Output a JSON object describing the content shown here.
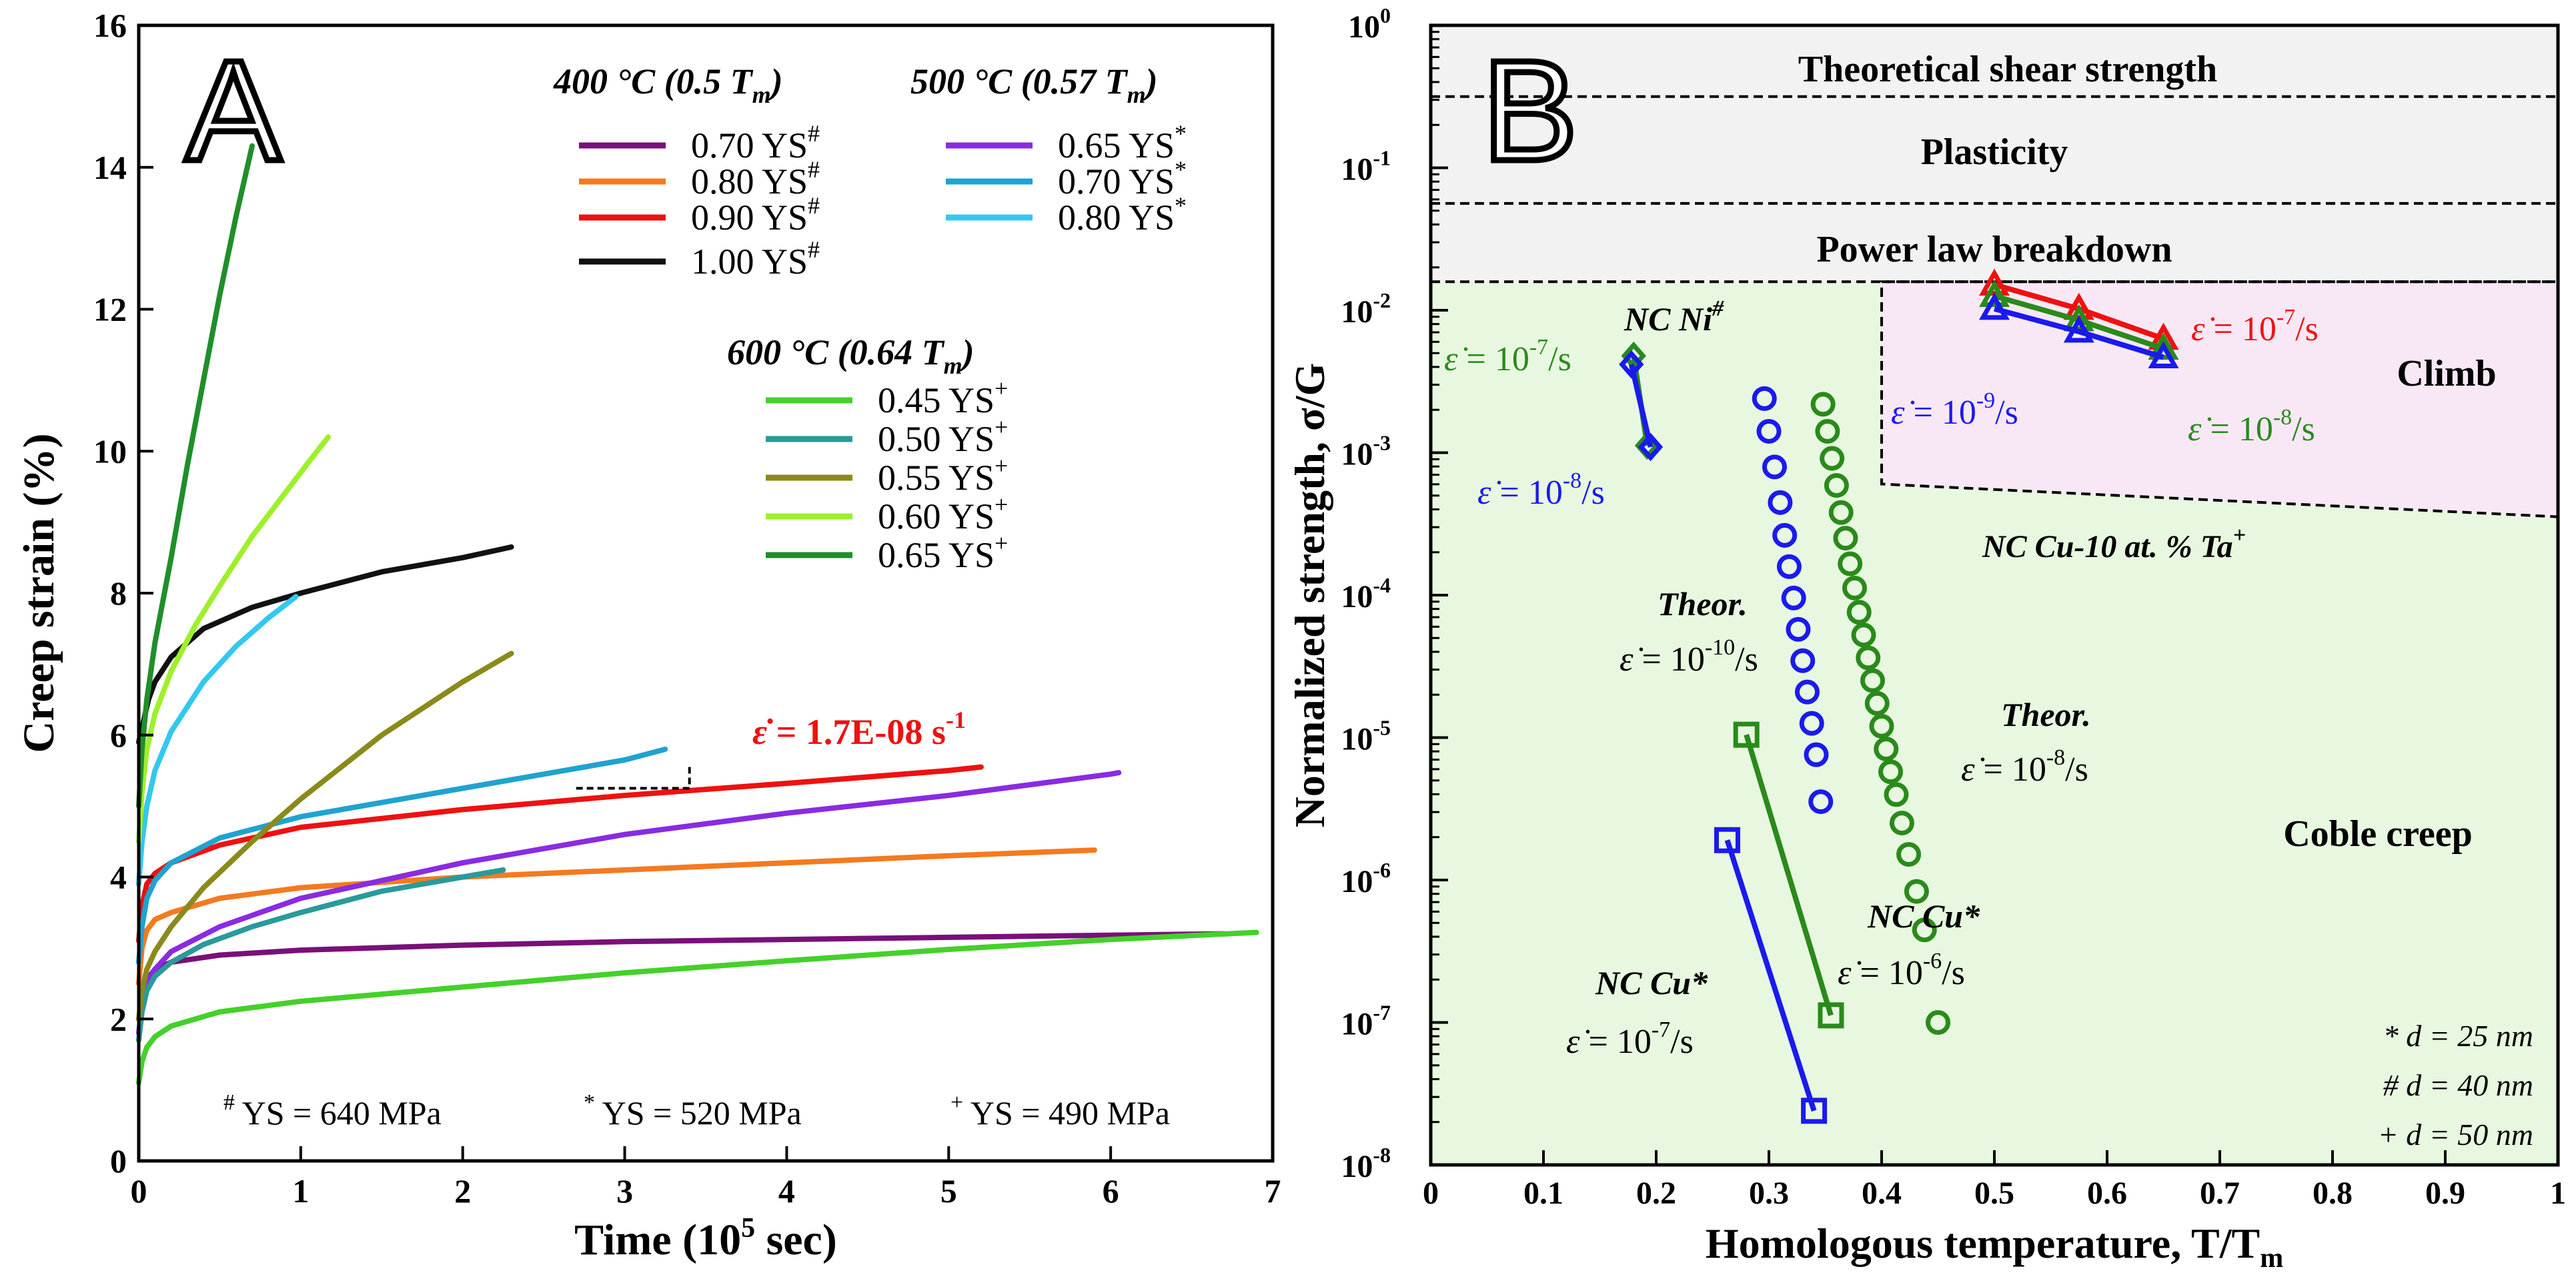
{
  "chart_data": [
    {
      "panel": "A",
      "type": "line",
      "xlabel": "Time (10",
      "xlabel_sup": "5",
      "xlabel_tail": " sec)",
      "ylabel": "Creep strain (%)",
      "xlim": [
        0,
        7
      ],
      "ylim": [
        0,
        16
      ],
      "xticks": [
        "0",
        "1",
        "2",
        "3",
        "4",
        "5",
        "6",
        "7"
      ],
      "yticks": [
        "0",
        "2",
        "4",
        "6",
        "8",
        "10",
        "12",
        "14",
        "16"
      ],
      "legend_groups": [
        {
          "title": "400 °C (0.5 T",
          "sub": "m",
          "title_tail": ")"
        },
        {
          "title": "500 °C (0.57 T",
          "sub": "m",
          "title_tail": ")"
        },
        {
          "title": "600 °C (0.64 T",
          "sub": "m",
          "title_tail": ")"
        }
      ],
      "series": [
        {
          "name": "0.70 YS",
          "mark": "#",
          "group": 0,
          "color": "#7a0f7a",
          "x": [
            0,
            0.02,
            0.05,
            0.1,
            0.2,
            0.5,
            1,
            2,
            3,
            4,
            5,
            6,
            6.7
          ],
          "y": [
            2.0,
            2.3,
            2.55,
            2.7,
            2.8,
            2.9,
            2.97,
            3.04,
            3.09,
            3.12,
            3.15,
            3.18,
            3.2
          ]
        },
        {
          "name": "0.80 YS",
          "mark": "#",
          "group": 0,
          "color": "#f47a20",
          "x": [
            0,
            0.02,
            0.05,
            0.1,
            0.2,
            0.5,
            1,
            2,
            3,
            4,
            5,
            5.9
          ],
          "y": [
            2.5,
            3.0,
            3.25,
            3.4,
            3.5,
            3.7,
            3.85,
            4.0,
            4.1,
            4.2,
            4.3,
            4.38
          ]
        },
        {
          "name": "0.90 YS",
          "mark": "#",
          "group": 0,
          "color": "#ee1111",
          "x": [
            0,
            0.02,
            0.05,
            0.1,
            0.2,
            0.5,
            1,
            2,
            3,
            4,
            5,
            5.2
          ],
          "y": [
            3.1,
            3.6,
            3.9,
            4.05,
            4.2,
            4.45,
            4.7,
            4.95,
            5.15,
            5.32,
            5.5,
            5.55
          ]
        },
        {
          "name": "1.00 YS",
          "mark": "#",
          "group": 0,
          "color": "#111111",
          "x": [
            0,
            0.03,
            0.06,
            0.1,
            0.2,
            0.4,
            0.7,
            1,
            1.5,
            2,
            2.3
          ],
          "y": [
            5.9,
            6.2,
            6.5,
            6.75,
            7.1,
            7.5,
            7.8,
            8.0,
            8.3,
            8.5,
            8.65
          ]
        },
        {
          "name": "0.65 YS",
          "mark": "*",
          "group": 1,
          "color": "#8a2be2",
          "x": [
            0,
            0.02,
            0.05,
            0.1,
            0.2,
            0.5,
            1,
            2,
            3,
            4,
            5,
            6,
            6.05
          ],
          "y": [
            1.8,
            2.2,
            2.5,
            2.7,
            2.95,
            3.3,
            3.7,
            4.2,
            4.6,
            4.9,
            5.15,
            5.45,
            5.47
          ]
        },
        {
          "name": "0.70 YS",
          "mark": "*",
          "group": 1,
          "color": "#1fa3cf",
          "x": [
            0,
            0.02,
            0.05,
            0.1,
            0.2,
            0.5,
            1,
            1.5,
            2,
            2.5,
            3,
            3.25
          ],
          "y": [
            2.8,
            3.3,
            3.7,
            3.95,
            4.2,
            4.55,
            4.85,
            5.05,
            5.25,
            5.45,
            5.65,
            5.8
          ]
        },
        {
          "name": "0.80 YS",
          "mark": "*",
          "group": 1,
          "color": "#33c8f0",
          "x": [
            0,
            0.02,
            0.05,
            0.1,
            0.2,
            0.4,
            0.6,
            0.8,
            0.97
          ],
          "y": [
            3.9,
            4.5,
            5.0,
            5.5,
            6.05,
            6.75,
            7.25,
            7.65,
            7.95
          ]
        },
        {
          "name": "0.45 YS",
          "mark": "+",
          "group": 2,
          "color": "#44d12a",
          "x": [
            0,
            0.02,
            0.05,
            0.1,
            0.2,
            0.5,
            1,
            2,
            3,
            4,
            5,
            6,
            6.9
          ],
          "y": [
            1.1,
            1.4,
            1.6,
            1.75,
            1.9,
            2.1,
            2.25,
            2.45,
            2.65,
            2.82,
            2.98,
            3.12,
            3.22
          ]
        },
        {
          "name": "0.50 YS",
          "mark": "+",
          "group": 2,
          "color": "#2a9a9a",
          "x": [
            0,
            0.02,
            0.05,
            0.1,
            0.2,
            0.4,
            0.7,
            1,
            1.5,
            2,
            2.25
          ],
          "y": [
            1.7,
            2.1,
            2.4,
            2.6,
            2.8,
            3.05,
            3.3,
            3.5,
            3.8,
            4.0,
            4.1
          ]
        },
        {
          "name": "0.55 YS",
          "mark": "+",
          "group": 2,
          "color": "#8a8a1c",
          "x": [
            0,
            0.02,
            0.05,
            0.1,
            0.2,
            0.4,
            0.7,
            1,
            1.5,
            2,
            2.3
          ],
          "y": [
            2.0,
            2.4,
            2.7,
            2.95,
            3.3,
            3.85,
            4.5,
            5.1,
            6.0,
            6.75,
            7.15
          ]
        },
        {
          "name": "0.60 YS",
          "mark": "+",
          "group": 2,
          "color": "#9ef02a",
          "x": [
            0,
            0.02,
            0.05,
            0.1,
            0.2,
            0.35,
            0.5,
            0.7,
            0.9,
            1.05,
            1.17
          ],
          "y": [
            4.5,
            5.2,
            5.8,
            6.3,
            6.9,
            7.55,
            8.1,
            8.8,
            9.4,
            9.85,
            10.2
          ]
        },
        {
          "name": "0.65 YS",
          "mark": "+",
          "group": 2,
          "color": "#1f8f2a",
          "x": [
            0,
            0.02,
            0.05,
            0.1,
            0.2,
            0.3,
            0.4,
            0.5,
            0.6,
            0.7
          ],
          "y": [
            5.0,
            5.8,
            6.5,
            7.3,
            8.5,
            9.8,
            11.0,
            12.2,
            13.3,
            14.3
          ]
        }
      ],
      "annotations": {
        "panel_label": "A",
        "rate_prefix": "ε̇",
        "rate_text": " = 1.7E-08 s",
        "rate_exp": "-1",
        "rate_color": "#ee1111",
        "rate_box": {
          "x": [
            2.7,
            3.4
          ],
          "y": [
            5.25,
            5.55
          ]
        },
        "footnotes": [
          {
            "mark": "#",
            "text": " YS = 640 MPa"
          },
          {
            "mark": "*",
            "text": " YS = 520 MPa"
          },
          {
            "mark": "+",
            "text": " YS = 490 MPa"
          }
        ]
      }
    },
    {
      "panel": "B",
      "type": "scatter",
      "xlabel": "Homologous temperature, T/T",
      "xlabel_sub": "m",
      "ylabel": "Normalized strength, σ/G",
      "xlim": [
        0,
        1
      ],
      "ylim_log10": [
        -8,
        0
      ],
      "xticks": [
        "0",
        "0.1",
        "0.2",
        "0.3",
        "0.4",
        "0.5",
        "0.6",
        "0.7",
        "0.8",
        "0.9",
        "1"
      ],
      "ytick_base": "10",
      "ytick_exps": [
        "-8",
        "-7",
        "-6",
        "-5",
        "-4",
        "-3",
        "-2",
        "-1",
        "0"
      ],
      "regions": [
        {
          "name": "Theoretical shear strength",
          "log_range": [
            -0.5,
            0
          ],
          "fill": "#f2f2f2"
        },
        {
          "name": "Plasticity",
          "log_range": [
            -1.25,
            -0.5
          ],
          "fill": "#f2f2f2"
        },
        {
          "name": "Power law breakdown",
          "log_range": [
            -1.8,
            -1.25
          ],
          "fill": "#f2f2f2"
        },
        {
          "name": "Coble creep",
          "log_range": [
            -8,
            -1.8
          ],
          "fill": "#e8f8e0"
        },
        {
          "name": "Climb",
          "polygon": [
            [
              0.4,
              -1.8
            ],
            [
              1.0,
              -1.8
            ],
            [
              1.0,
              -3.45
            ],
            [
              0.4,
              -3.22
            ]
          ],
          "fill": "#f8e8f6"
        }
      ],
      "dashed_lines_log": [
        -0.5,
        -1.25,
        -1.8
      ],
      "series": [
        {
          "name": "NC Ni green",
          "color": "#2a8a1a",
          "marker": "diamond",
          "x": [
            0.18,
            0.192
          ],
          "y_log": [
            -2.32,
            -2.95
          ]
        },
        {
          "name": "NC Ni blue",
          "color": "#1a1aee",
          "marker": "diamond",
          "x": [
            0.178,
            0.195
          ],
          "y_log": [
            -2.38,
            -2.96
          ]
        },
        {
          "name": "NC Cu-10 at.% Ta red",
          "color": "#ee1111",
          "marker": "triangle",
          "x": [
            0.5,
            0.575,
            0.65
          ],
          "y_log": [
            -1.82,
            -1.99,
            -2.2
          ]
        },
        {
          "name": "NC Cu-10 at.% Ta green",
          "color": "#2a8a1a",
          "marker": "triangle",
          "x": [
            0.5,
            0.575,
            0.65
          ],
          "y_log": [
            -1.9,
            -2.07,
            -2.27
          ]
        },
        {
          "name": "NC Cu-10 at.% Ta blue",
          "color": "#1a1aee",
          "marker": "triangle",
          "x": [
            0.5,
            0.575,
            0.65
          ],
          "y_log": [
            -1.99,
            -2.15,
            -2.33
          ]
        },
        {
          "name": "Theor. 10^-10/s",
          "color": "#1a1aee",
          "marker": "circle",
          "x": [
            0.296,
            0.3,
            0.305,
            0.31,
            0.314,
            0.318,
            0.322,
            0.326,
            0.33,
            0.334,
            0.338,
            0.342,
            0.346
          ],
          "y_log": [
            -2.62,
            -2.85,
            -3.1,
            -3.35,
            -3.58,
            -3.8,
            -4.02,
            -4.24,
            -4.46,
            -4.68,
            -4.9,
            -5.12,
            -5.45
          ]
        },
        {
          "name": "Theor. 10^-8/s",
          "color": "#2a8a1a",
          "marker": "circle",
          "x": [
            0.348,
            0.352,
            0.356,
            0.36,
            0.364,
            0.368,
            0.372,
            0.376,
            0.38,
            0.384,
            0.388,
            0.392,
            0.396,
            0.4,
            0.404,
            0.408,
            0.413,
            0.418,
            0.424,
            0.431,
            0.438,
            0.45
          ],
          "y_log": [
            -2.66,
            -2.85,
            -3.04,
            -3.23,
            -3.42,
            -3.6,
            -3.78,
            -3.95,
            -4.12,
            -4.28,
            -4.44,
            -4.6,
            -4.76,
            -4.92,
            -5.08,
            -5.24,
            -5.4,
            -5.6,
            -5.82,
            -6.08,
            -6.35,
            -7.0
          ]
        },
        {
          "name": "NC Cu* 10^-6/s",
          "color": "#2a8a1a",
          "marker": "square",
          "x": [
            0.28,
            0.355
          ],
          "y_log": [
            -4.98,
            -6.95
          ]
        },
        {
          "name": "NC Cu* 10^-7/s",
          "color": "#1a1aee",
          "marker": "square",
          "x": [
            0.263,
            0.34
          ],
          "y_log": [
            -5.72,
            -7.62
          ]
        }
      ],
      "labels": {
        "panel_label": "B",
        "region_theoretical": "Theoretical shear strength",
        "region_plasticity": "Plasticity",
        "region_plb": "Power law breakdown",
        "region_climb": "Climb",
        "region_coble": "Coble creep",
        "nc_ni": "NC Ni",
        "nc_ni_mark": "#",
        "nc_cuta": "NC Cu-10 at. % Ta",
        "nc_cuta_mark": "+",
        "theor": "Theor.",
        "nc_cu_star": "NC Cu*",
        "rate_prefix": "ε̇",
        "rate_eq": " = 10",
        "rate_unit": "/s",
        "exp_m7": "-7",
        "exp_m8": "-8",
        "exp_m9": "-9",
        "exp_m10": "-10",
        "exp_m6": "-6",
        "grain_sizes": [
          "* d = 25 nm",
          "# d = 40 nm",
          "+ d = 50 nm"
        ]
      }
    }
  ]
}
